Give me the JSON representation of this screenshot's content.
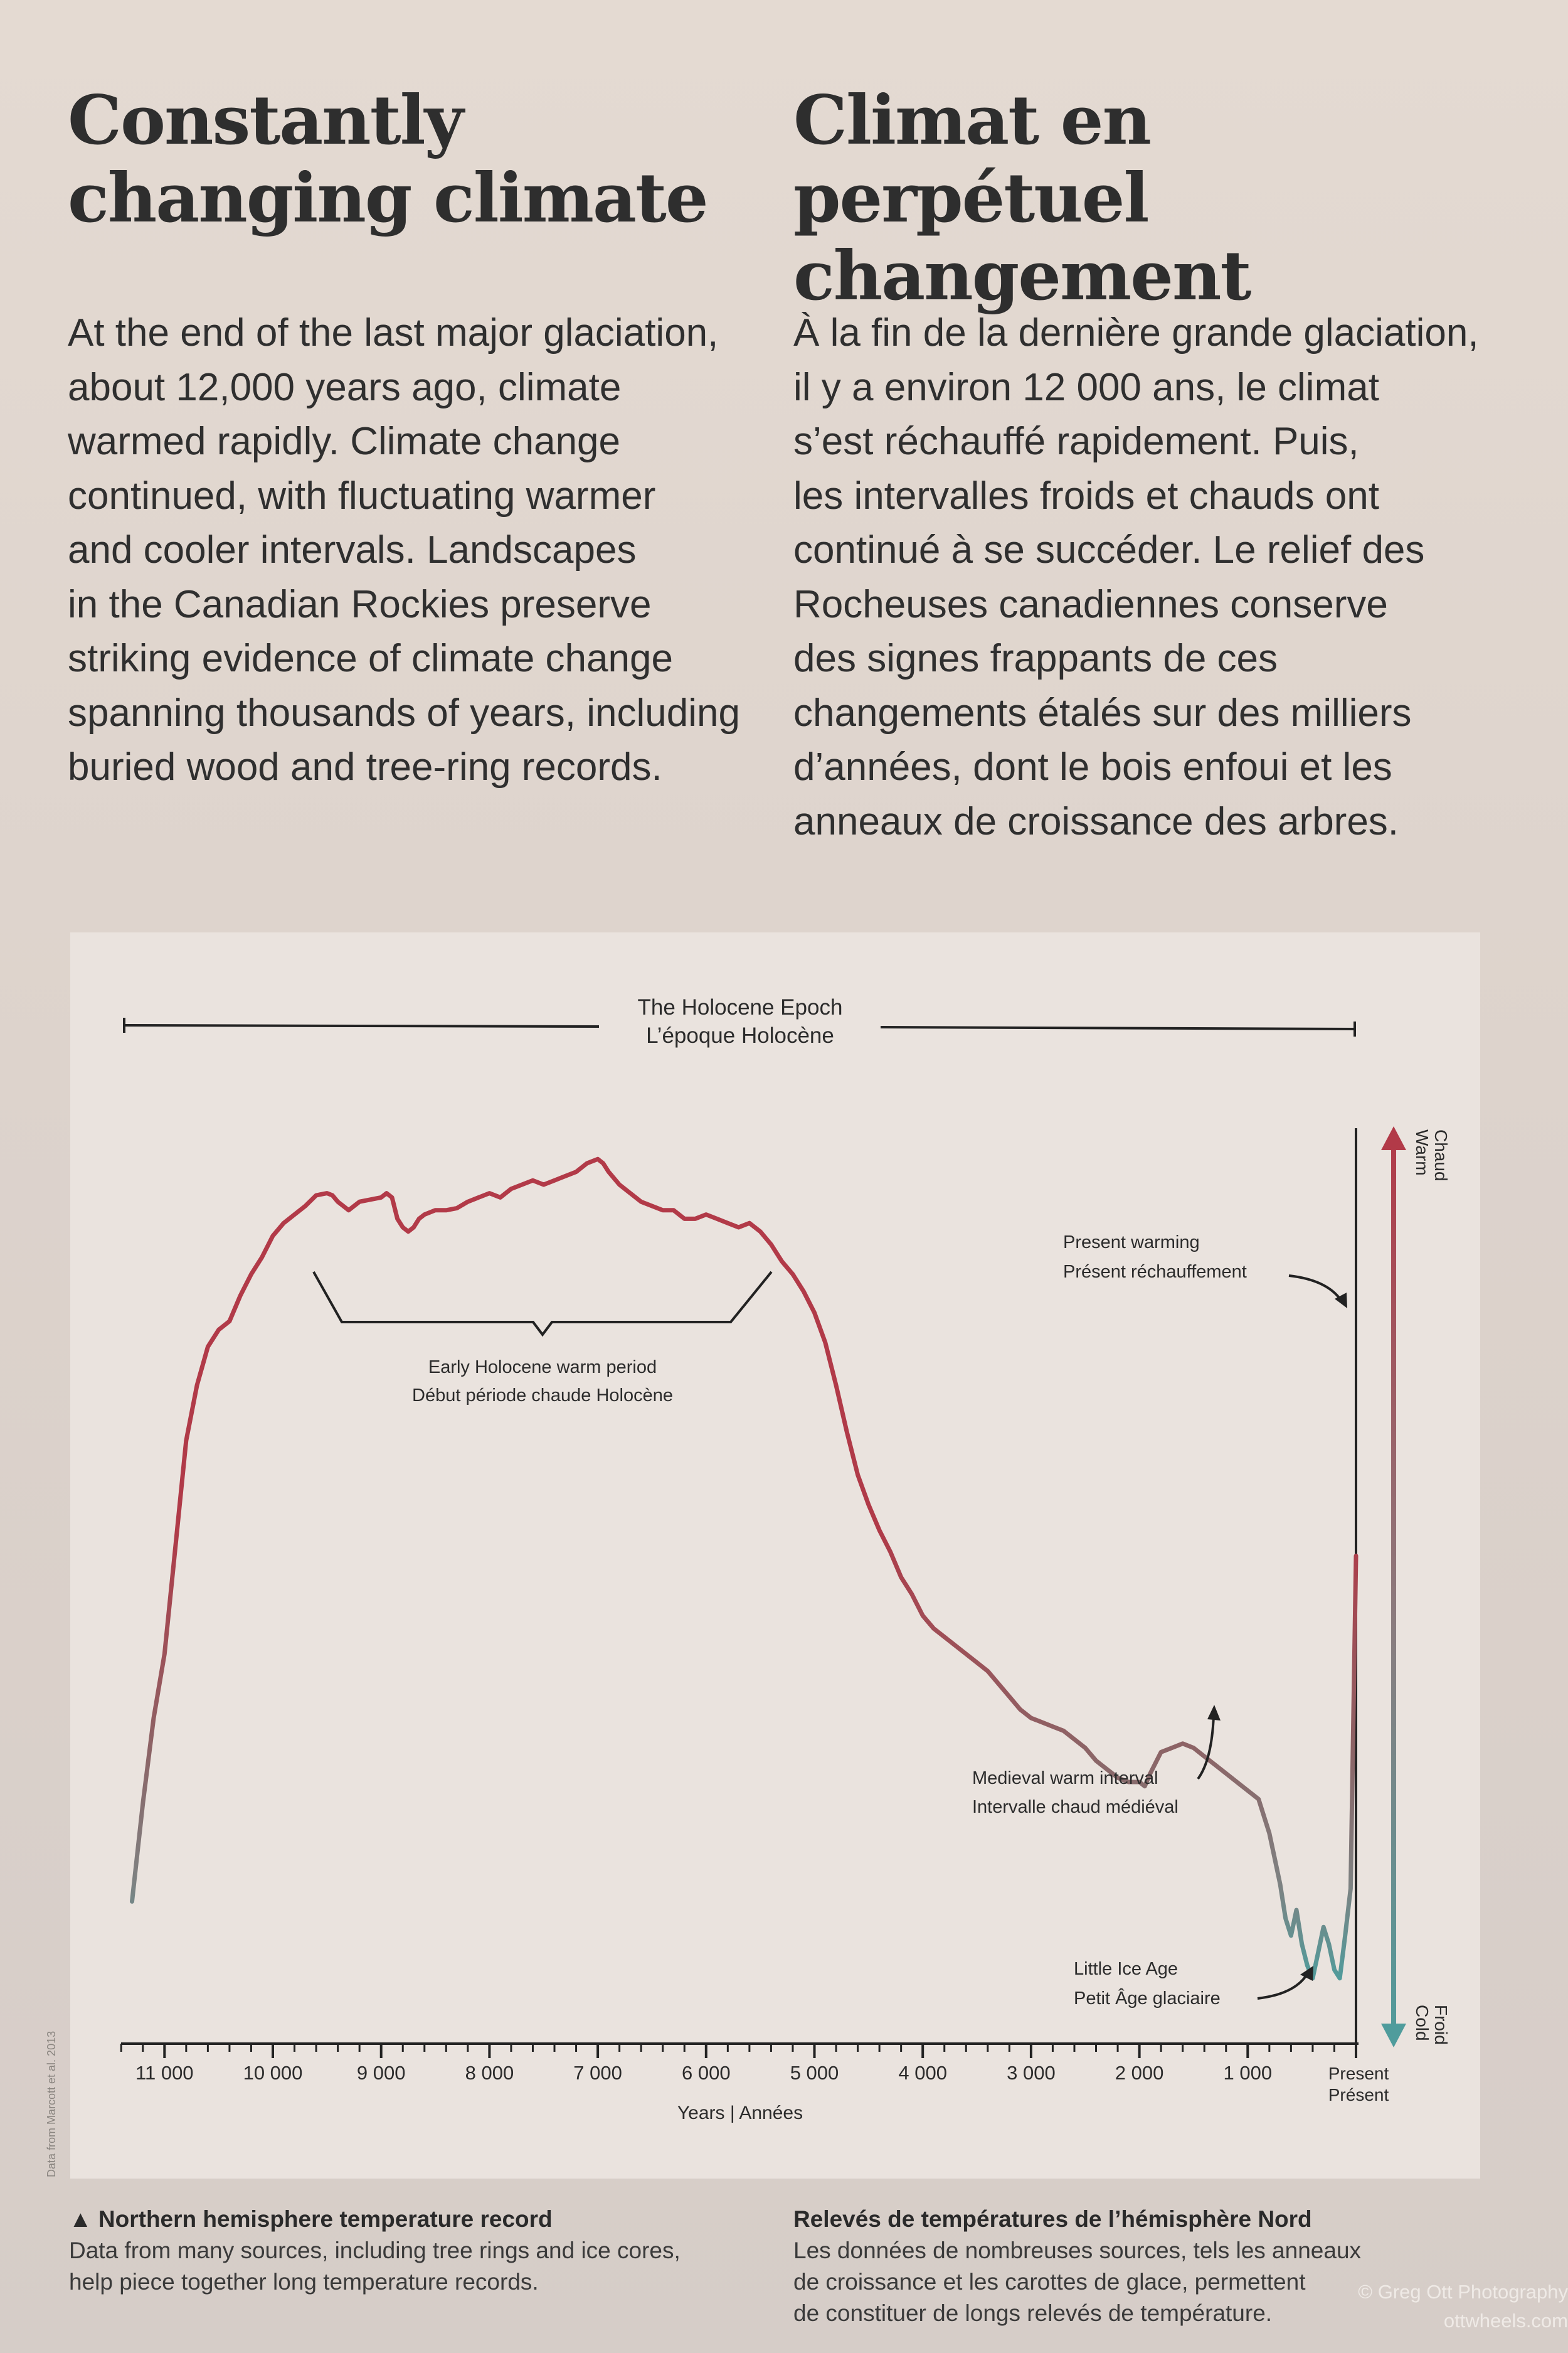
{
  "headings": {
    "en": "Constantly changing climate",
    "fr": "Climat en perpétuel changement"
  },
  "body": {
    "en": "At the end of the last major glaciation,\nabout 12,000 years ago, climate\nwarmed rapidly. Climate change\ncontinued, with fluctuating warmer\nand cooler intervals. Landscapes\nin the Canadian Rockies preserve\nstriking evidence of climate change\nspanning thousands of years, including\nburied wood and tree-ring records.",
    "fr": "À la fin de la dernière grande glaciation,\nil y a environ 12 000 ans, le climat\ns’est réchauffé rapidement. Puis,\nles intervalles froids et chauds ont\ncontinué à se succéder. Le relief des\nRocheuses canadiennes conserve\ndes signes frappants de ces\nchangements étalés sur des milliers\nd’années, dont le bois enfoui et les\nanneaux de croissance des arbres."
  },
  "chart_data": {
    "type": "line",
    "epoch_label": [
      "The Holocene Epoch",
      "L’époque Holocène"
    ],
    "xlabel": "Years | Années",
    "x_ticks": [
      {
        "value": 11000,
        "label": "11 000"
      },
      {
        "value": 10000,
        "label": "10 000"
      },
      {
        "value": 9000,
        "label": "9 000"
      },
      {
        "value": 8000,
        "label": "8 000"
      },
      {
        "value": 7000,
        "label": "7 000"
      },
      {
        "value": 6000,
        "label": "6 000"
      },
      {
        "value": 5000,
        "label": "5 000"
      },
      {
        "value": 4000,
        "label": "4 000"
      },
      {
        "value": 3000,
        "label": "3 000"
      },
      {
        "value": 2000,
        "label": "2 000"
      },
      {
        "value": 1000,
        "label": "1 000"
      },
      {
        "value": 0,
        "label": [
          "Present",
          "Présent"
        ]
      }
    ],
    "xlim": [
      11400,
      0
    ],
    "ylim": [
      -1,
      1
    ],
    "y_scale_labels": {
      "top": [
        "Warm",
        "Chaud"
      ],
      "bottom": [
        "Cold",
        "Froid"
      ]
    },
    "colors": {
      "warm": "#b23a48",
      "cold": "#4f9c9c",
      "mid": "#8a8482",
      "axis": "#222222"
    },
    "series": [
      {
        "x": [
          11300,
          11200,
          11100,
          11000,
          10900,
          10800,
          10700,
          10600,
          10500,
          10400,
          10300,
          10200,
          10100,
          10000,
          9900,
          9800,
          9700,
          9600,
          9500,
          9450,
          9400,
          9350,
          9300,
          9250,
          9200,
          9100,
          9000,
          8950,
          8900,
          8850,
          8800,
          8750,
          8700,
          8650,
          8600,
          8500,
          8400,
          8300,
          8200,
          8100,
          8000,
          7900,
          7800,
          7700,
          7600,
          7500,
          7400,
          7300,
          7200,
          7100,
          7000,
          6950,
          6900,
          6800,
          6700,
          6600,
          6500,
          6400,
          6300,
          6200,
          6100,
          6000,
          5900,
          5800,
          5700,
          5600,
          5500,
          5400,
          5300,
          5200,
          5100,
          5000,
          4900,
          4800,
          4700,
          4600,
          4500,
          4400,
          4300,
          4200,
          4100,
          4000,
          3900,
          3800,
          3700,
          3600,
          3500,
          3400,
          3300,
          3200,
          3100,
          3000,
          2900,
          2800,
          2700,
          2600,
          2500,
          2400,
          2300,
          2200,
          2100,
          2000,
          1950,
          1900,
          1800,
          1700,
          1600,
          1500,
          1400,
          1300,
          1200,
          1100,
          1000,
          900,
          850,
          800,
          750,
          700,
          650,
          600,
          550,
          500,
          450,
          400,
          350,
          300,
          250,
          200,
          150,
          100,
          50,
          0
        ],
        "y": [
          -0.78,
          -0.55,
          -0.35,
          -0.2,
          0.05,
          0.3,
          0.43,
          0.52,
          0.56,
          0.58,
          0.64,
          0.69,
          0.73,
          0.78,
          0.81,
          0.83,
          0.85,
          0.875,
          0.88,
          0.875,
          0.86,
          0.85,
          0.84,
          0.85,
          0.86,
          0.865,
          0.87,
          0.88,
          0.87,
          0.82,
          0.8,
          0.79,
          0.8,
          0.82,
          0.83,
          0.84,
          0.84,
          0.845,
          0.86,
          0.87,
          0.88,
          0.87,
          0.89,
          0.9,
          0.91,
          0.9,
          0.91,
          0.92,
          0.93,
          0.95,
          0.96,
          0.95,
          0.93,
          0.9,
          0.88,
          0.86,
          0.85,
          0.84,
          0.84,
          0.82,
          0.82,
          0.83,
          0.82,
          0.81,
          0.8,
          0.81,
          0.79,
          0.76,
          0.72,
          0.69,
          0.65,
          0.6,
          0.53,
          0.43,
          0.32,
          0.22,
          0.15,
          0.09,
          0.04,
          -0.02,
          -0.06,
          -0.11,
          -0.14,
          -0.16,
          -0.18,
          -0.2,
          -0.22,
          -0.24,
          -0.27,
          -0.3,
          -0.33,
          -0.35,
          -0.36,
          -0.37,
          -0.38,
          -0.4,
          -0.42,
          -0.45,
          -0.47,
          -0.49,
          -0.5,
          -0.5,
          -0.51,
          -0.48,
          -0.43,
          -0.42,
          -0.41,
          -0.42,
          -0.44,
          -0.46,
          -0.48,
          -0.5,
          -0.52,
          -0.54,
          -0.58,
          -0.62,
          -0.68,
          -0.74,
          -0.82,
          -0.86,
          -0.8,
          -0.88,
          -0.93,
          -0.96,
          -0.9,
          -0.84,
          -0.88,
          -0.94,
          -0.96,
          -0.86,
          -0.75,
          0.03
        ]
      }
    ],
    "annotations": [
      {
        "label": [
          "Early Holocene warm period",
          "Début période chaude Holocène"
        ],
        "x_range": [
          9700,
          5400
        ]
      },
      {
        "label": [
          "Present warming",
          "Présent réchauffement"
        ],
        "x": 0
      },
      {
        "label": [
          "Medieval warm interval",
          "Intervalle chaud médiéval"
        ],
        "x": 1300
      },
      {
        "label": [
          "Little Ice Age",
          "Petit Âge glaciaire"
        ],
        "x": 300
      }
    ]
  },
  "caption": {
    "en": {
      "title": "▲ Northern hemisphere temperature record",
      "text": "Data from many sources, including tree rings and ice cores,\nhelp piece together long temperature records."
    },
    "fr": {
      "title": "Relevés de températures de l’hémisphère Nord",
      "text": "Les données de nombreuses sources, tels les anneaux\nde croissance et les carottes de glace, permettent\nde constituer de longs relevés de température."
    }
  },
  "credit": "Data from Marcott et al. 2013",
  "watermark": "© Greg Ott Photography\nottwheels.com"
}
